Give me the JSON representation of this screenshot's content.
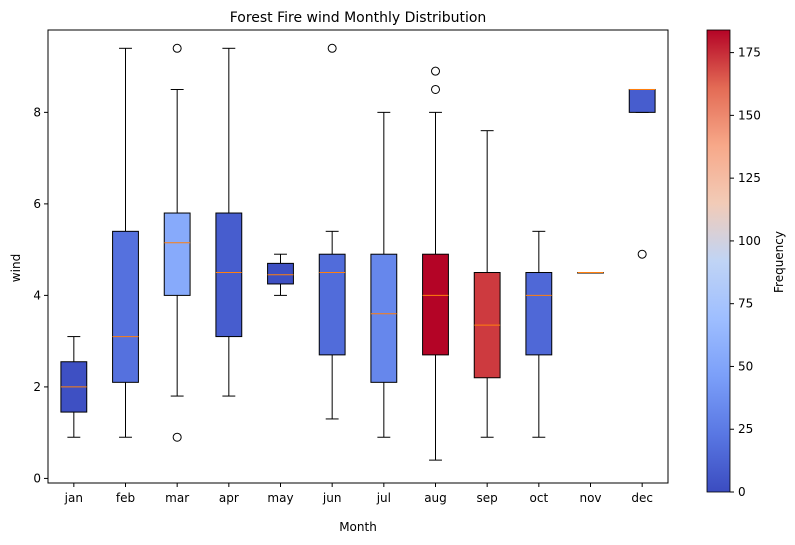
{
  "chart_data": {
    "type": "box",
    "title": "Forest Fire wind Monthly Distribution",
    "xlabel": "Month",
    "ylabel": "wind",
    "ylim": [
      -0.1,
      9.8
    ],
    "yticks": [
      0,
      2,
      4,
      6,
      8
    ],
    "grid": false,
    "categories": [
      "jan",
      "feb",
      "mar",
      "apr",
      "may",
      "jun",
      "jul",
      "aug",
      "sep",
      "oct",
      "nov",
      "dec"
    ],
    "boxes": [
      {
        "month": "jan",
        "whisker_low": 0.9,
        "q1": 1.45,
        "median": 2.0,
        "q3": 2.55,
        "whisker_high": 3.1,
        "outliers": [],
        "count": 2
      },
      {
        "month": "feb",
        "whisker_low": 0.9,
        "q1": 2.1,
        "median": 3.1,
        "q3": 5.4,
        "whisker_high": 9.4,
        "outliers": [],
        "count": 20
      },
      {
        "month": "mar",
        "whisker_low": 1.8,
        "q1": 4.0,
        "median": 5.15,
        "q3": 5.8,
        "whisker_high": 8.5,
        "outliers": [
          0.9,
          9.4
        ],
        "count": 54
      },
      {
        "month": "apr",
        "whisker_low": 1.8,
        "q1": 3.1,
        "median": 4.5,
        "q3": 5.8,
        "whisker_high": 9.4,
        "outliers": [],
        "count": 9
      },
      {
        "month": "may",
        "whisker_low": 4.0,
        "q1": 4.25,
        "median": 4.45,
        "q3": 4.7,
        "whisker_high": 4.9,
        "outliers": [],
        "count": 2
      },
      {
        "month": "jun",
        "whisker_low": 1.3,
        "q1": 2.7,
        "median": 4.5,
        "q3": 4.9,
        "whisker_high": 5.4,
        "outliers": [
          9.4
        ],
        "count": 17
      },
      {
        "month": "jul",
        "whisker_low": 0.9,
        "q1": 2.1,
        "median": 3.6,
        "q3": 4.9,
        "whisker_high": 8.0,
        "outliers": [],
        "count": 32
      },
      {
        "month": "aug",
        "whisker_low": 0.4,
        "q1": 2.7,
        "median": 4.0,
        "q3": 4.9,
        "whisker_high": 8.0,
        "outliers": [
          8.5,
          8.9
        ],
        "count": 184
      },
      {
        "month": "sep",
        "whisker_low": 0.9,
        "q1": 2.2,
        "median": 3.35,
        "q3": 4.5,
        "whisker_high": 7.6,
        "outliers": [],
        "count": 172
      },
      {
        "month": "oct",
        "whisker_low": 0.9,
        "q1": 2.7,
        "median": 4.0,
        "q3": 4.5,
        "whisker_high": 5.4,
        "outliers": [],
        "count": 15
      },
      {
        "month": "nov",
        "whisker_low": 4.5,
        "q1": 4.5,
        "median": 4.5,
        "q3": 4.5,
        "whisker_high": 4.5,
        "outliers": [],
        "count": 1
      },
      {
        "month": "dec",
        "whisker_low": 8.0,
        "q1": 8.0,
        "median": 8.5,
        "q3": 8.5,
        "whisker_high": 8.5,
        "outliers": [
          4.9
        ],
        "count": 9
      }
    ],
    "colorbar": {
      "label": "Frequency",
      "colormap": "coolwarm",
      "range": [
        0,
        184
      ],
      "ticks": [
        0,
        25,
        50,
        75,
        100,
        125,
        150,
        175
      ]
    },
    "colors": {
      "median_line": "#ff7f0e",
      "box_edge": "#000000"
    }
  }
}
